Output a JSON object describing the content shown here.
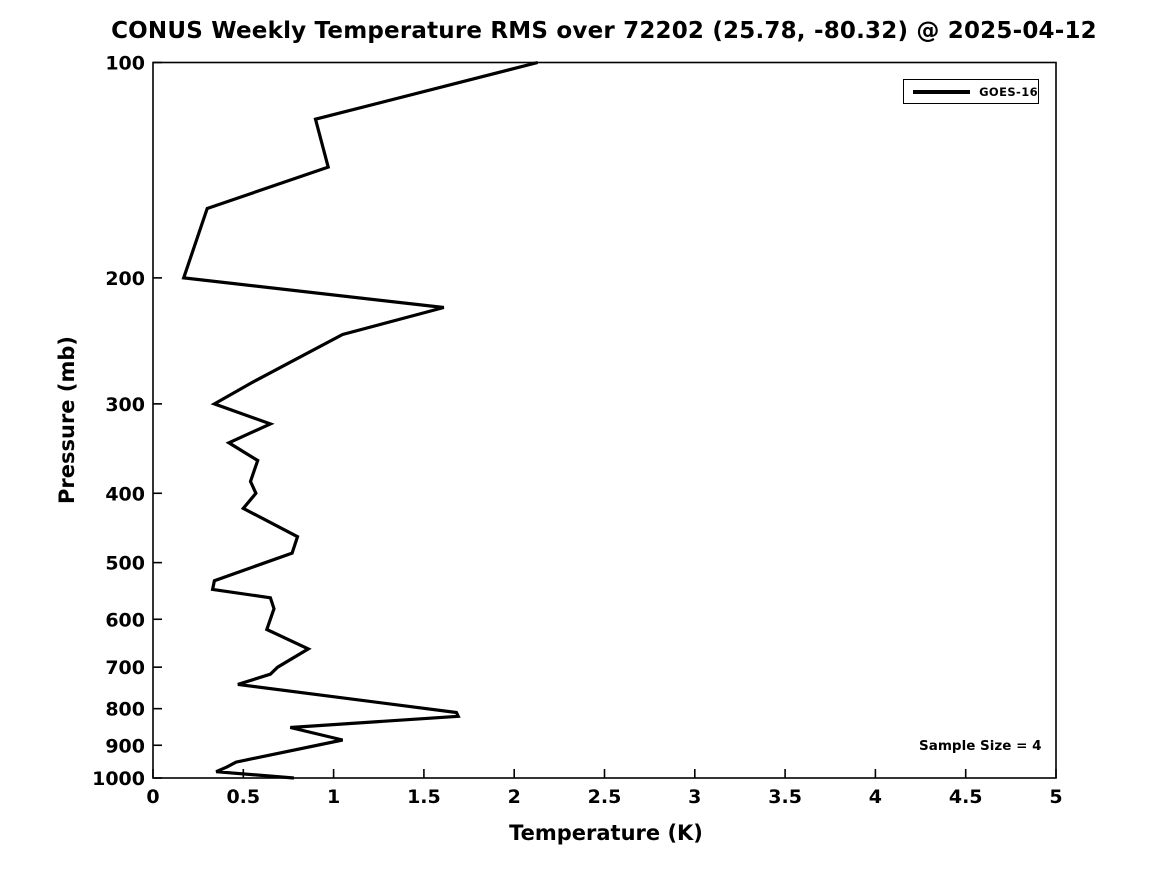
{
  "title": "CONUS Weekly Temperature RMS over 72202 (25.78, -80.32) @ 2025-04-12",
  "annotations": {
    "sample_size_text": "Sample Size = 4"
  },
  "legend": {
    "position": "top-right",
    "entries": [
      {
        "label": "GOES-16",
        "color": "#000000"
      }
    ]
  },
  "colors": {
    "line": "#000000",
    "axes": "#000000",
    "background": "#ffffff",
    "text": "#000000"
  },
  "chart_data": {
    "type": "line",
    "title": "CONUS Weekly Temperature RMS over 72202 (25.78, -80.32) @ 2025-04-12",
    "xlabel": "Temperature (K)",
    "ylabel": "Pressure (mb)",
    "xlim": [
      0,
      5
    ],
    "ylim": [
      100,
      1000
    ],
    "y_scale": "log",
    "y_inverted": true,
    "grid": false,
    "legend_position": "top-right",
    "sample_size": 4,
    "x_ticks": [
      0,
      0.5,
      1,
      1.5,
      2,
      2.5,
      3,
      3.5,
      4,
      4.5,
      5
    ],
    "x_tick_labels": [
      "0",
      "0.5",
      "1",
      "1.5",
      "2",
      "2.5",
      "3",
      "3.5",
      "4",
      "4.5",
      "5"
    ],
    "y_ticks": [
      100,
      200,
      300,
      400,
      500,
      600,
      700,
      800,
      900,
      1000
    ],
    "y_tick_labels": [
      "100",
      "200",
      "300",
      "400",
      "500",
      "600",
      "700",
      "800",
      "900",
      "1000"
    ],
    "series": [
      {
        "name": "GOES-16",
        "color": "#000000",
        "line_width": 3.2,
        "y_pressure_mb": [
          100,
          120,
          140,
          160,
          200,
          220,
          240,
          280,
          300,
          320,
          340,
          360,
          385,
          400,
          420,
          460,
          485,
          530,
          545,
          560,
          580,
          620,
          660,
          700,
          716,
          740,
          810,
          820,
          850,
          885,
          950,
          965,
          980,
          1000
        ],
        "x_temperature_k": [
          2.13,
          0.9,
          0.97,
          0.3,
          0.17,
          1.61,
          1.05,
          0.55,
          0.34,
          0.65,
          0.42,
          0.58,
          0.54,
          0.57,
          0.5,
          0.8,
          0.77,
          0.34,
          0.33,
          0.65,
          0.67,
          0.63,
          0.86,
          0.69,
          0.65,
          0.47,
          1.68,
          1.69,
          0.76,
          1.05,
          0.46,
          0.41,
          0.35,
          0.78
        ]
      }
    ]
  }
}
